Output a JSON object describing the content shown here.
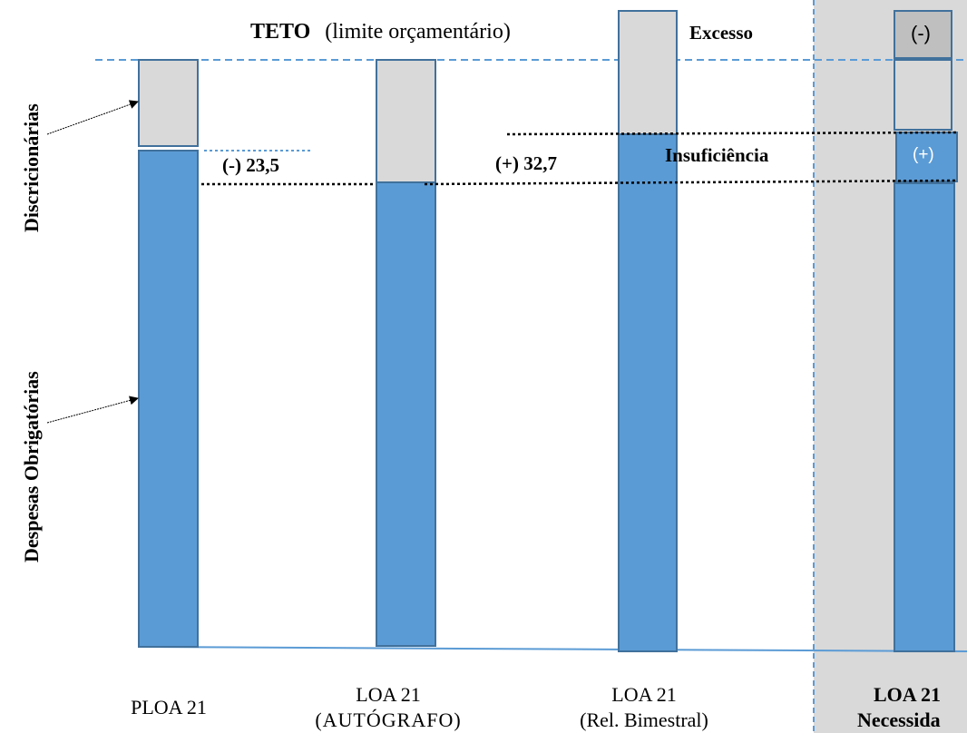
{
  "labels": {
    "teto_bold": "TETO",
    "teto_rest": "(limite orçamentário)",
    "excesso": "Excesso",
    "insuficiencia": "Insuficiência",
    "minus_23": "(-) 23,5",
    "plus_32": "(+) 32,7",
    "minus_box": "(-)",
    "plus_box": "(+)",
    "discricionarias": "Discricionárias",
    "obrigatorias": "Despesas Obrigatórias"
  },
  "categories": [
    {
      "line1": "PLOA 21",
      "line2": ""
    },
    {
      "line1": "LOA 21",
      "line2": "(AUTÓGRAFO)"
    },
    {
      "line1": "LOA 21",
      "line2": "(Rel. Bimestral)"
    },
    {
      "line1": "LOA 21",
      "line2": "Necessida"
    }
  ],
  "colors": {
    "blue": "#5b9bd5",
    "gray": "#d9d9d9",
    "dark_gray": "#bfbfbf",
    "border": "#41719c",
    "dashed": "#5b9bd5",
    "shade": "#d9d9d9"
  }
}
